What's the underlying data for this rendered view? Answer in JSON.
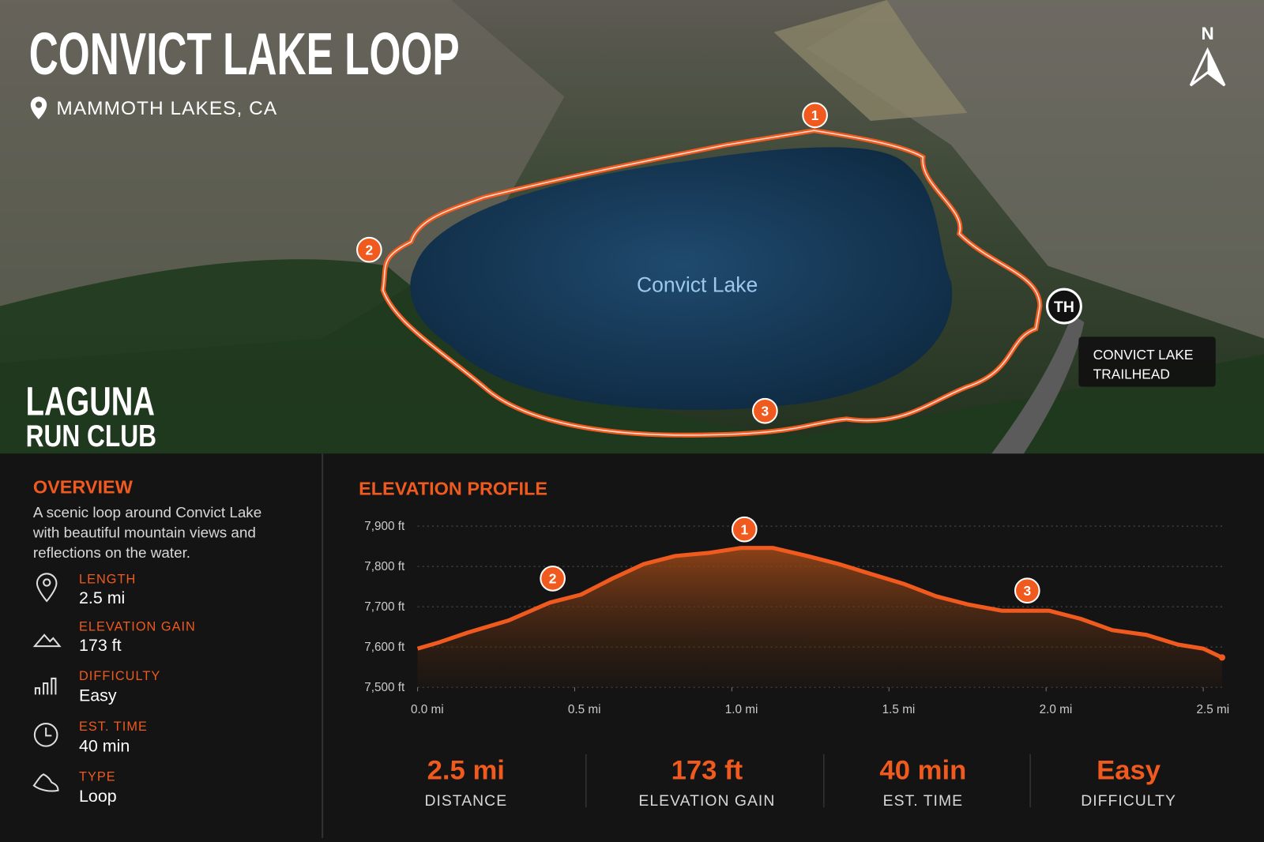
{
  "header": {
    "title": "CONVICT LAKE LOOP",
    "location": "MAMMOTH LAKES, CA"
  },
  "map": {
    "lake": "Convict Lake",
    "compass": "N",
    "waypoints": [
      "1",
      "2",
      "3"
    ],
    "trailhead": "TH",
    "trailhead_label": [
      "CONVICT LAKE",
      "TRAILHEAD"
    ],
    "brand": [
      "LAGUNA",
      "RUN CLUB"
    ]
  },
  "overview": {
    "title": "OVERVIEW",
    "text": [
      "A scenic loop around Convict Lake",
      "with beautiful mountain views and",
      "reflections on the water."
    ]
  },
  "details": [
    {
      "label": "LENGTH",
      "value": "2.5 mi"
    },
    {
      "label": "ELEVATION GAIN",
      "value": "173 ft"
    },
    {
      "label": "DIFFICULTY",
      "value": "Easy"
    },
    {
      "label": "EST. TIME",
      "value": "40 min"
    },
    {
      "label": "TYPE",
      "value": "Loop"
    }
  ],
  "chart_data": {
    "type": "area",
    "title": "ELEVATION PROFILE",
    "color": "#f05a1e",
    "x": [
      0,
      0.07,
      0.16,
      0.29,
      0.42,
      0.52,
      0.62,
      0.72,
      0.82,
      0.93,
      1.03,
      1.13,
      1.24,
      1.34,
      1.44,
      1.55,
      1.65,
      1.75,
      1.86,
      2.01,
      2.11,
      2.21,
      2.32,
      2.42,
      2.5,
      2.56
    ],
    "values": [
      7596,
      7612,
      7636,
      7666,
      7710,
      7730,
      7770,
      7806,
      7826,
      7834,
      7846,
      7846,
      7826,
      7806,
      7782,
      7756,
      7726,
      7706,
      7690,
      7690,
      7670,
      7642,
      7630,
      7606,
      7596,
      7574
    ],
    "xlim": [
      0,
      2.56
    ],
    "ylim": [
      7500,
      7900
    ],
    "xticks": [
      {
        "value": 0,
        "label": "0.0 mi"
      },
      {
        "value": 0.5,
        "label": "0.5 mi"
      },
      {
        "value": 1,
        "label": "1.0 mi"
      },
      {
        "value": 1.5,
        "label": "1.5 mi"
      },
      {
        "value": 2,
        "label": "2.0 mi"
      },
      {
        "value": 2.5,
        "label": "2.5 mi"
      }
    ],
    "yticks": [
      {
        "value": 7500,
        "label": "7,500 ft"
      },
      {
        "value": 7600,
        "label": "7,600 ft"
      },
      {
        "value": 7700,
        "label": "7,700 ft"
      },
      {
        "value": 7800,
        "label": "7,800 ft"
      },
      {
        "value": 7900,
        "label": "7,900 ft"
      }
    ],
    "grid": true,
    "annotations": [
      {
        "label": "1",
        "x": 1.04,
        "y": 7892
      },
      {
        "label": "2",
        "x": 0.43,
        "y": 7770
      },
      {
        "label": "3",
        "x": 1.94,
        "y": 7740
      }
    ]
  },
  "summary": [
    {
      "value": "2.5 mi",
      "label": "DISTANCE"
    },
    {
      "value": "173 ft",
      "label": "ELEVATION GAIN"
    },
    {
      "value": "40 min",
      "label": "EST. TIME"
    },
    {
      "value": "Easy",
      "label": "DIFFICULTY"
    }
  ]
}
